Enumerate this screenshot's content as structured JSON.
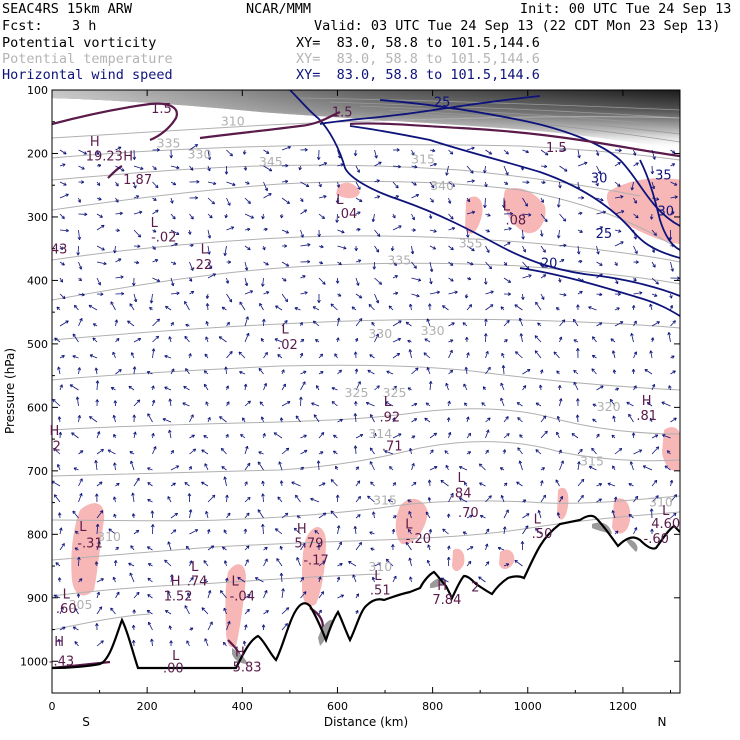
{
  "header": {
    "model": "SEAC4RS 15km ARW",
    "center": "NCAR/MMM",
    "init": "Init: 00 UTC Tue 24 Sep 13",
    "fcst_label": "Fcst:",
    "fcst_value": "3 h",
    "valid": "Valid: 03 UTC Tue 24 Sep 13 (22 CDT Mon 23 Sep 13)",
    "fields": [
      {
        "name": "Potential vorticity",
        "xy": "XY=  83.0, 58.8 to 101.5,144.6",
        "color": "#000000"
      },
      {
        "name": "Potential temperature",
        "xy": "XY=  83.0, 58.8 to 101.5,144.6",
        "color": "#b4b4b4"
      },
      {
        "name": "Horizontal wind speed",
        "xy": "XY=  83.0, 58.8 to 101.5,144.6",
        "color": "#0d137a"
      }
    ]
  },
  "colors": {
    "pv": "#5a1a4a",
    "theta": "#b0b0b0",
    "wind": "#0d137a",
    "pv_fill": "#f7b7b7",
    "terrain": "#000000"
  },
  "chart_data": {
    "type": "cross-section",
    "xlabel": "Distance (km)",
    "ylabel": "Pressure (hPa)",
    "xlim": [
      0,
      1320
    ],
    "ylim": [
      1050,
      100
    ],
    "x_ticks": [
      0,
      200,
      400,
      600,
      800,
      1000,
      1200
    ],
    "y_ticks": [
      100,
      200,
      300,
      400,
      500,
      600,
      700,
      800,
      900,
      1000
    ],
    "endpoint_labels": {
      "left": "S",
      "right": "N"
    },
    "theta_labels": [
      {
        "text": "310",
        "x": 380,
        "p": 148
      },
      {
        "text": "335",
        "x": 245,
        "p": 183
      },
      {
        "text": "330",
        "x": 310,
        "p": 200
      },
      {
        "text": "345",
        "x": 460,
        "p": 212
      },
      {
        "text": "315",
        "x": 780,
        "p": 208
      },
      {
        "text": "340",
        "x": 820,
        "p": 250
      },
      {
        "text": "355",
        "x": 880,
        "p": 340
      },
      {
        "text": "335",
        "x": 730,
        "p": 367
      },
      {
        "text": "330",
        "x": 690,
        "p": 483
      },
      {
        "text": "330",
        "x": 800,
        "p": 478
      },
      {
        "text": "325",
        "x": 640,
        "p": 576
      },
      {
        "text": "325",
        "x": 720,
        "p": 576
      },
      {
        "text": "320",
        "x": 1170,
        "p": 598
      },
      {
        "text": "315",
        "x": 1135,
        "p": 684
      },
      {
        "text": "315",
        "x": 700,
        "p": 745
      },
      {
        "text": "310",
        "x": 1280,
        "p": 748
      },
      {
        "text": "310",
        "x": 690,
        "p": 850
      },
      {
        "text": "305",
        "x": 60,
        "p": 910
      },
      {
        "text": "314",
        "x": 690,
        "p": 640
      },
      {
        "text": "310",
        "x": 120,
        "p": 803
      }
    ],
    "pv_labels": [
      {
        "text": "1.5",
        "x": 230,
        "p": 128
      },
      {
        "text": "1.5",
        "x": 610,
        "p": 134
      },
      {
        "text": "1.5",
        "x": 1060,
        "p": 190
      },
      {
        "text": "H",
        "x": 90,
        "p": 180
      },
      {
        "text": "19.23",
        "x": 110,
        "p": 203
      },
      {
        "text": "H",
        "x": 160,
        "p": 203
      },
      {
        "text": "1.87",
        "x": 180,
        "p": 240
      },
      {
        "text": "L",
        "x": 605,
        "p": 272
      },
      {
        "text": ".04",
        "x": 620,
        "p": 294
      },
      {
        "text": "L",
        "x": 955,
        "p": 282
      },
      {
        "text": ".08",
        "x": 975,
        "p": 304
      },
      {
        "text": "L",
        "x": 215,
        "p": 308
      },
      {
        "text": "-.02",
        "x": 235,
        "p": 331
      },
      {
        "text": "L",
        "x": 320,
        "p": 350
      },
      {
        "text": ".22",
        "x": 315,
        "p": 374
      },
      {
        "text": "43",
        "x": 15,
        "p": 350
      },
      {
        "text": "L",
        "x": 490,
        "p": 476
      },
      {
        "text": ".02",
        "x": 495,
        "p": 500
      },
      {
        "text": "H",
        "x": 1250,
        "p": 588
      },
      {
        "text": ".81",
        "x": 1250,
        "p": 612
      },
      {
        "text": "L",
        "x": 705,
        "p": 590
      },
      {
        "text": ".92",
        "x": 710,
        "p": 614
      },
      {
        "text": ".71",
        "x": 715,
        "p": 660
      },
      {
        "text": "H",
        "x": 5,
        "p": 636
      },
      {
        "text": "2",
        "x": 10,
        "p": 660
      },
      {
        "text": "L",
        "x": 860,
        "p": 710
      },
      {
        "text": ".84",
        "x": 860,
        "p": 734
      },
      {
        "text": ".70",
        "x": 875,
        "p": 765
      },
      {
        "text": "L",
        "x": 1020,
        "p": 775
      },
      {
        "text": ".50",
        "x": 1030,
        "p": 798
      },
      {
        "text": "L",
        "x": 65,
        "p": 787
      },
      {
        "text": "-.31",
        "x": 80,
        "p": 813
      },
      {
        "text": "H",
        "x": 525,
        "p": 790
      },
      {
        "text": "5.79",
        "x": 540,
        "p": 813
      },
      {
        "text": "-.17",
        "x": 555,
        "p": 840
      },
      {
        "text": "L",
        "x": 750,
        "p": 783
      },
      {
        "text": "-.20",
        "x": 770,
        "p": 806
      },
      {
        "text": "L",
        "x": 1290,
        "p": 762
      },
      {
        "text": "4.60",
        "x": 1290,
        "p": 782
      },
      {
        "text": "-.60",
        "x": 1270,
        "p": 806
      },
      {
        "text": "L",
        "x": 300,
        "p": 850
      },
      {
        "text": ".74",
        "x": 305,
        "p": 873
      },
      {
        "text": "H",
        "x": 260,
        "p": 873
      },
      {
        "text": "1.52",
        "x": 265,
        "p": 896
      },
      {
        "text": "L",
        "x": 385,
        "p": 873
      },
      {
        "text": "-.04",
        "x": 400,
        "p": 896
      },
      {
        "text": "L",
        "x": 685,
        "p": 864
      },
      {
        "text": ".51",
        "x": 690,
        "p": 887
      },
      {
        "text": "H",
        "x": 820,
        "p": 880
      },
      {
        "text": "7.84",
        "x": 830,
        "p": 902
      },
      {
        "text": "2",
        "x": 890,
        "p": 882
      },
      {
        "text": "L",
        "x": 30,
        "p": 893
      },
      {
        "text": ".60",
        "x": 30,
        "p": 916
      },
      {
        "text": "H",
        "x": 15,
        "p": 968
      },
      {
        "text": "-.43",
        "x": 20,
        "p": 999
      },
      {
        "text": "L",
        "x": 260,
        "p": 990
      },
      {
        "text": ".00",
        "x": 255,
        "p": 1010
      },
      {
        "text": "H",
        "x": 395,
        "p": 985
      },
      {
        "text": "5.83",
        "x": 410,
        "p": 1008
      }
    ],
    "wind_labels": [
      {
        "text": "25",
        "x": 820,
        "p": 118
      },
      {
        "text": "30",
        "x": 1150,
        "p": 238
      },
      {
        "text": "35",
        "x": 1285,
        "p": 233
      },
      {
        "text": "30",
        "x": 1290,
        "p": 290
      },
      {
        "text": "25",
        "x": 1160,
        "p": 325
      },
      {
        "text": "20",
        "x": 1045,
        "p": 372
      }
    ]
  }
}
